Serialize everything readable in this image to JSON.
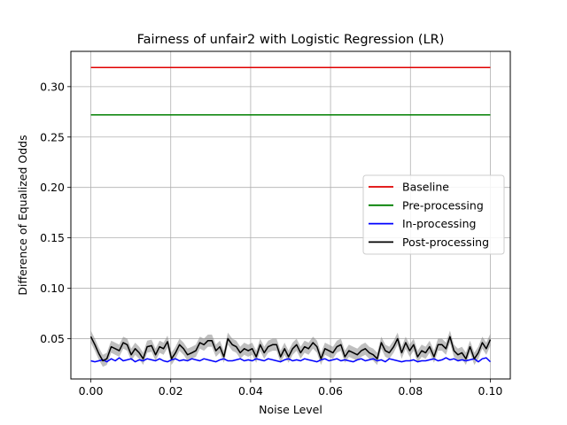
{
  "chart_data": {
    "type": "line",
    "title": "Fairness of unfair2 with Logistic Regression (LR)",
    "xlabel": "Noise Level",
    "ylabel": "Difference of Equalized Odds",
    "xlim": [
      -0.005,
      0.105
    ],
    "ylim": [
      0.01,
      0.335
    ],
    "xticks": [
      0.0,
      0.02,
      0.04,
      0.06,
      0.08,
      0.1
    ],
    "xtick_labels": [
      "0.00",
      "0.02",
      "0.04",
      "0.06",
      "0.08",
      "0.10"
    ],
    "yticks": [
      0.05,
      0.1,
      0.15,
      0.2,
      0.25,
      0.3
    ],
    "ytick_labels": [
      "0.05",
      "0.10",
      "0.15",
      "0.20",
      "0.25",
      "0.30"
    ],
    "grid": true,
    "legend_position": "center-right",
    "x": [
      0.0,
      0.001,
      0.002,
      0.003,
      0.004,
      0.0051,
      0.0061,
      0.0071,
      0.0081,
      0.0091,
      0.0101,
      0.0111,
      0.0121,
      0.0131,
      0.0141,
      0.0152,
      0.0162,
      0.0172,
      0.0182,
      0.0192,
      0.0202,
      0.0212,
      0.0222,
      0.0232,
      0.0242,
      0.0253,
      0.0263,
      0.0273,
      0.0283,
      0.0293,
      0.0303,
      0.0313,
      0.0323,
      0.0333,
      0.0343,
      0.0354,
      0.0364,
      0.0374,
      0.0384,
      0.0394,
      0.0404,
      0.0414,
      0.0424,
      0.0434,
      0.0444,
      0.0455,
      0.0465,
      0.0475,
      0.0485,
      0.0495,
      0.0505,
      0.0515,
      0.0525,
      0.0535,
      0.0545,
      0.0556,
      0.0566,
      0.0576,
      0.0586,
      0.0596,
      0.0606,
      0.0616,
      0.0626,
      0.0636,
      0.0646,
      0.0657,
      0.0667,
      0.0677,
      0.0687,
      0.0697,
      0.0707,
      0.0717,
      0.0727,
      0.0737,
      0.0747,
      0.0758,
      0.0768,
      0.0778,
      0.0788,
      0.0798,
      0.0808,
      0.0818,
      0.0828,
      0.0838,
      0.0848,
      0.0859,
      0.0869,
      0.0879,
      0.0889,
      0.0899,
      0.0909,
      0.0919,
      0.0929,
      0.0939,
      0.0949,
      0.096,
      0.097,
      0.098,
      0.099,
      0.1
    ],
    "series": [
      {
        "name": "Baseline",
        "color": "#e00000",
        "constant": 0.319
      },
      {
        "name": "Pre-processing",
        "color": "#007f00",
        "constant": 0.272
      },
      {
        "name": "In-processing",
        "color": "#0000ff",
        "values": [
          0.028,
          0.027,
          0.028,
          0.029,
          0.027,
          0.03,
          0.028,
          0.031,
          0.028,
          0.029,
          0.03,
          0.027,
          0.029,
          0.028,
          0.03,
          0.029,
          0.028,
          0.03,
          0.028,
          0.027,
          0.029,
          0.03,
          0.028,
          0.029,
          0.028,
          0.03,
          0.029,
          0.028,
          0.03,
          0.029,
          0.028,
          0.027,
          0.029,
          0.03,
          0.028,
          0.028,
          0.029,
          0.03,
          0.028,
          0.029,
          0.028,
          0.03,
          0.029,
          0.028,
          0.03,
          0.029,
          0.028,
          0.027,
          0.029,
          0.03,
          0.028,
          0.029,
          0.028,
          0.03,
          0.029,
          0.028,
          0.027,
          0.029,
          0.03,
          0.028,
          0.029,
          0.03,
          0.028,
          0.029,
          0.028,
          0.027,
          0.029,
          0.03,
          0.028,
          0.029,
          0.03,
          0.028,
          0.029,
          0.027,
          0.03,
          0.029,
          0.028,
          0.027,
          0.028,
          0.028,
          0.029,
          0.027,
          0.028,
          0.028,
          0.029,
          0.03,
          0.028,
          0.029,
          0.031,
          0.029,
          0.03,
          0.028,
          0.029,
          0.028,
          0.029,
          0.03,
          0.027,
          0.03,
          0.031,
          0.027
        ]
      },
      {
        "name": "Post-processing",
        "color": "#000000",
        "values": [
          0.052,
          0.044,
          0.035,
          0.028,
          0.03,
          0.042,
          0.04,
          0.038,
          0.046,
          0.044,
          0.034,
          0.04,
          0.036,
          0.03,
          0.042,
          0.043,
          0.034,
          0.042,
          0.04,
          0.047,
          0.03,
          0.036,
          0.044,
          0.04,
          0.034,
          0.036,
          0.038,
          0.046,
          0.044,
          0.048,
          0.048,
          0.038,
          0.042,
          0.032,
          0.05,
          0.044,
          0.042,
          0.036,
          0.04,
          0.038,
          0.04,
          0.032,
          0.044,
          0.036,
          0.042,
          0.044,
          0.044,
          0.032,
          0.04,
          0.032,
          0.04,
          0.044,
          0.036,
          0.042,
          0.04,
          0.046,
          0.042,
          0.03,
          0.04,
          0.038,
          0.036,
          0.042,
          0.044,
          0.032,
          0.038,
          0.036,
          0.034,
          0.038,
          0.04,
          0.036,
          0.034,
          0.03,
          0.046,
          0.038,
          0.036,
          0.042,
          0.05,
          0.036,
          0.046,
          0.038,
          0.044,
          0.032,
          0.038,
          0.036,
          0.042,
          0.032,
          0.044,
          0.044,
          0.04,
          0.052,
          0.038,
          0.034,
          0.036,
          0.03,
          0.042,
          0.03,
          0.036,
          0.046,
          0.04,
          0.049
        ],
        "band": 0.006
      }
    ]
  }
}
